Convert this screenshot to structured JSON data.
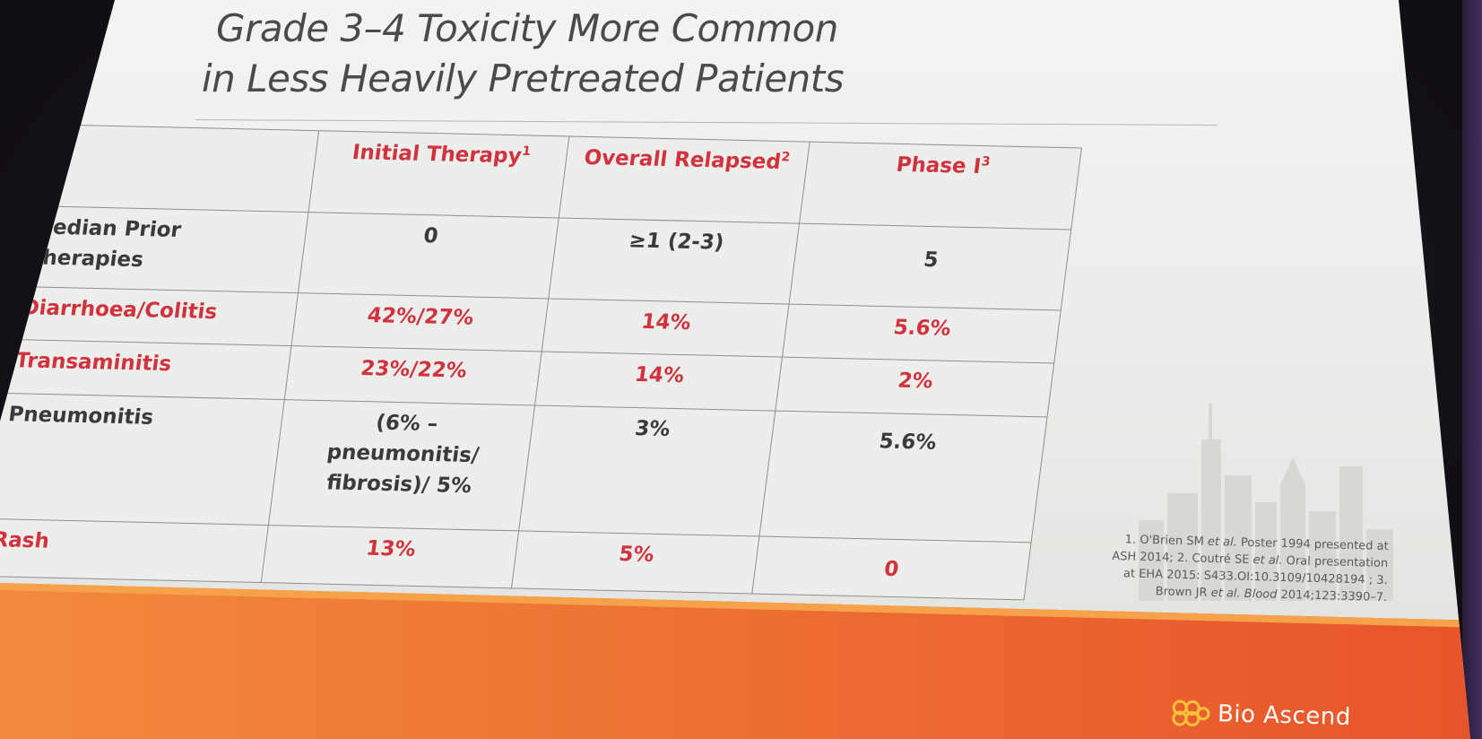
{
  "slide": {
    "title_line1": "Grade 3–4 Toxicity More Common",
    "title_line2": "in Less Heavily Pretreated Patients"
  },
  "table": {
    "columns": [
      {
        "label": "Initial Therapy",
        "ref": "1"
      },
      {
        "label": "Overall Relapsed",
        "ref": "2"
      },
      {
        "label": "Phase I",
        "ref": "3"
      }
    ],
    "rows": [
      {
        "label": "Median Prior Therapies",
        "values": [
          "0",
          "≥1 (2-3)",
          "5"
        ]
      },
      {
        "label": "Diarrhoea/Colitis",
        "values": [
          "42%/27%",
          "14%",
          "5.6%"
        ]
      },
      {
        "label": "Transaminitis",
        "values": [
          "23%/22%",
          "14%",
          "2%"
        ]
      },
      {
        "label": "Pneumonitis",
        "values": [
          "(6% – pneumonitis/ fibrosis)/ 5%",
          "3%",
          "5.6%"
        ]
      },
      {
        "label": "Rash",
        "values": [
          "13%",
          "5%",
          "0"
        ]
      }
    ]
  },
  "citation": {
    "c1": "1. O'Brien SM ",
    "c1_etal": "et al.",
    "c2": " Poster 1994 presented at ASH 2014; 2. Coutré SE ",
    "c2_etal": "et al.",
    "c3": " Oral presentation at EHA 2015: S433.OI:10.3109/10428194 ; 3. Brown JR ",
    "c3_etal": "et al.",
    "c4_journal": "Blood",
    "c4": " 2014;123:3390–7."
  },
  "brand": {
    "name": "Bio Ascend"
  },
  "colors": {
    "accent_red": "#d0323e",
    "text_dark": "#3a3a3a",
    "footer_orange": "#e8542a",
    "footer_orange_light": "#f28a3c"
  }
}
